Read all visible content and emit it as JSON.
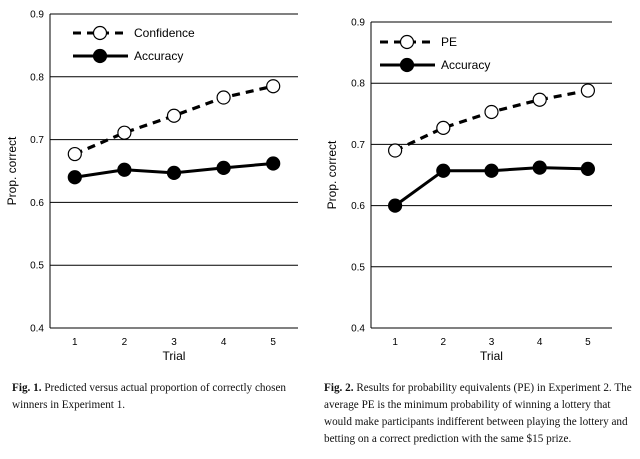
{
  "chart_data": [
    {
      "type": "line",
      "xlabel": "Trial",
      "ylabel": "Prop. correct",
      "x": [
        1,
        2,
        3,
        4,
        5
      ],
      "ylim": [
        0.4,
        0.9
      ],
      "yticks": [
        "0.4",
        "0.5",
        "0.6",
        "0.7",
        "0.8",
        "0.9"
      ],
      "xticks": [
        "1",
        "2",
        "3",
        "4",
        "5"
      ],
      "grid": "horizontal",
      "legend": "top-left",
      "series": [
        {
          "name": "Confidence",
          "values": [
            0.677,
            0.711,
            0.738,
            0.767,
            0.785
          ],
          "marker": "open-circle",
          "line": "dashed"
        },
        {
          "name": "Accuracy",
          "values": [
            0.64,
            0.652,
            0.647,
            0.655,
            0.662
          ],
          "marker": "filled-circle",
          "line": "solid"
        }
      ],
      "caption_num": "Fig. 1.",
      "caption_text": " Predicted versus actual proportion of correctly chosen winners in Experiment 1."
    },
    {
      "type": "line",
      "xlabel": "Trial",
      "ylabel": "Prop. correct",
      "x": [
        1,
        2,
        3,
        4,
        5
      ],
      "ylim": [
        0.4,
        0.9
      ],
      "yticks": [
        "0.4",
        "0.5",
        "0.6",
        "0.7",
        "0.8",
        "0.9"
      ],
      "xticks": [
        "1",
        "2",
        "3",
        "4",
        "5"
      ],
      "grid": "horizontal",
      "legend": "top-left",
      "series": [
        {
          "name": "PE",
          "values": [
            0.69,
            0.727,
            0.753,
            0.773,
            0.788
          ],
          "marker": "open-circle",
          "line": "dashed"
        },
        {
          "name": "Accuracy",
          "values": [
            0.6,
            0.657,
            0.657,
            0.662,
            0.66
          ],
          "marker": "filled-circle",
          "line": "solid"
        }
      ],
      "caption_num": "Fig. 2.",
      "caption_text": " Results for probability equivalents (PE) in Experiment 2. The average PE is the minimum probability of winning a lottery that would make participants indifferent between playing the lottery and betting on a correct prediction with the same $15 prize."
    }
  ]
}
